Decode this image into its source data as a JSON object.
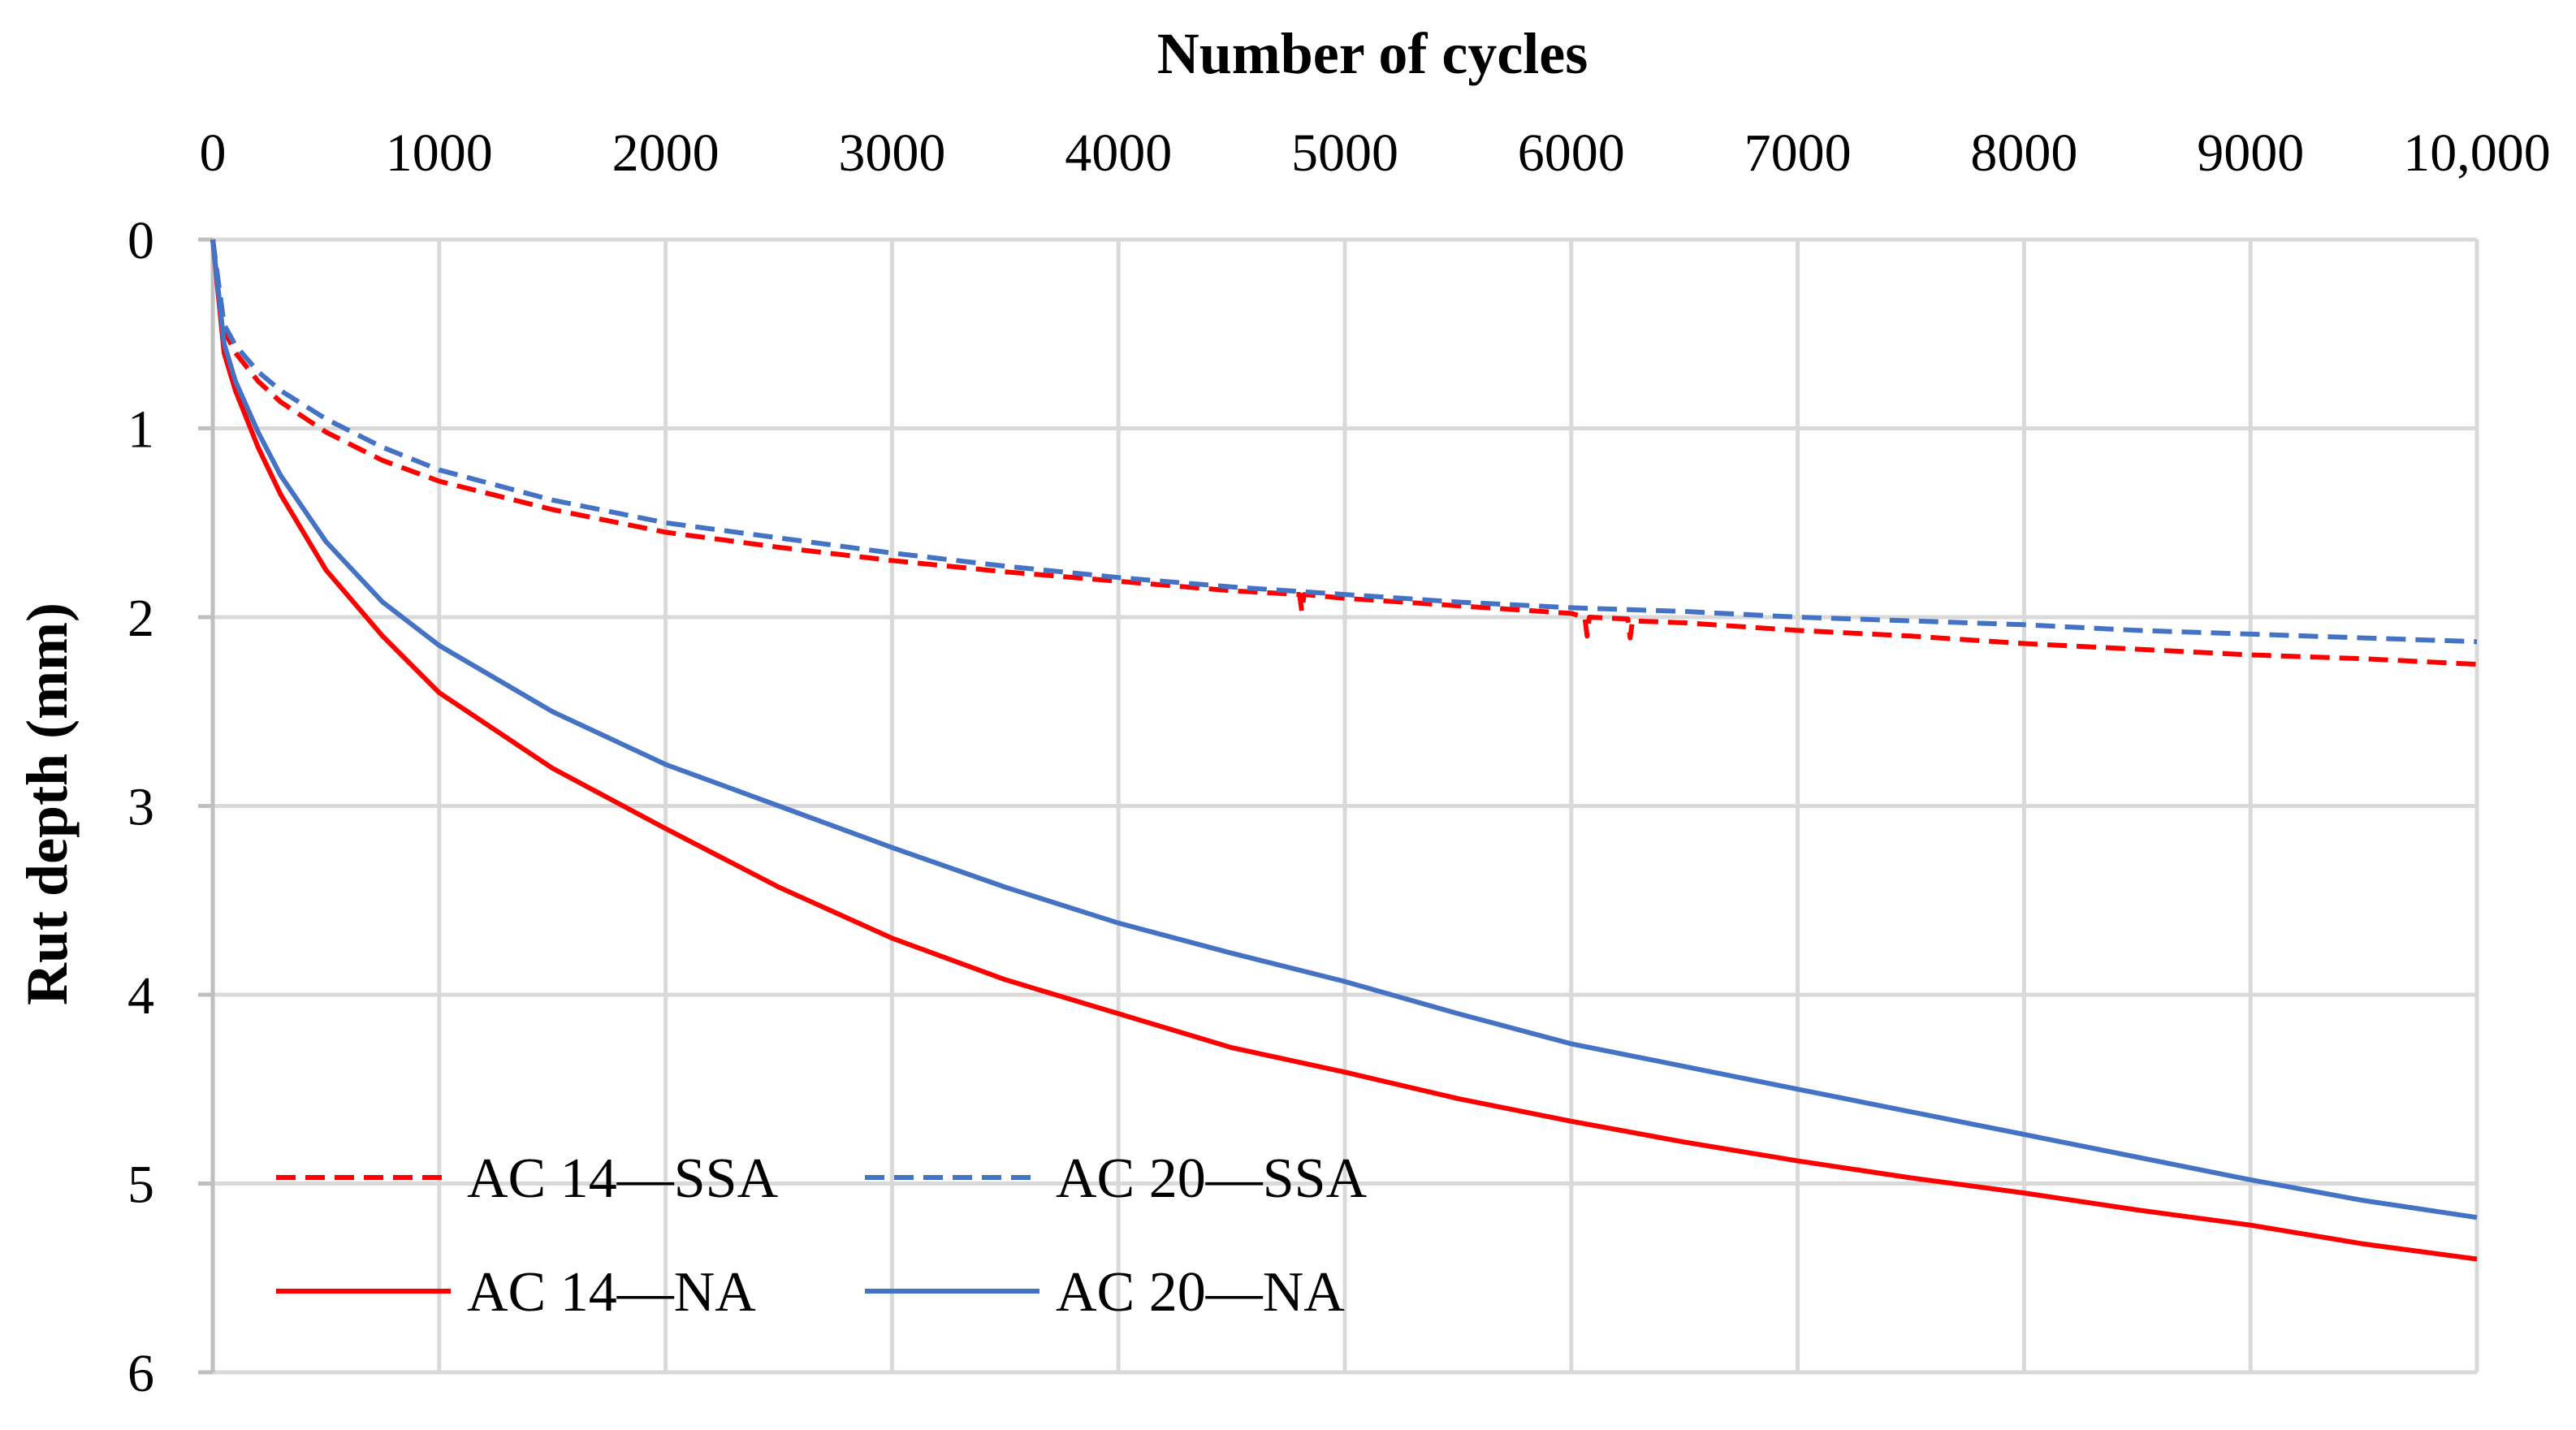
{
  "chart_data": {
    "type": "line",
    "title": "",
    "xlabel": "Number of cycles",
    "ylabel": "Rut depth (mm)",
    "xlim": [
      0,
      10000
    ],
    "ylim": [
      0,
      6
    ],
    "y_inverted": true,
    "x_axis_position": "top",
    "grid": true,
    "x_ticks": [
      {
        "value": 0,
        "label": "0"
      },
      {
        "value": 1000,
        "label": "1000"
      },
      {
        "value": 2000,
        "label": "2000"
      },
      {
        "value": 3000,
        "label": "3000"
      },
      {
        "value": 4000,
        "label": "4000"
      },
      {
        "value": 5000,
        "label": "5000"
      },
      {
        "value": 6000,
        "label": "6000"
      },
      {
        "value": 7000,
        "label": "7000"
      },
      {
        "value": 8000,
        "label": "8000"
      },
      {
        "value": 9000,
        "label": "9000"
      },
      {
        "value": 10000,
        "label": "10,000"
      }
    ],
    "y_ticks": [
      {
        "value": 0,
        "label": "0"
      },
      {
        "value": 1,
        "label": "1"
      },
      {
        "value": 2,
        "label": "2"
      },
      {
        "value": 3,
        "label": "3"
      },
      {
        "value": 4,
        "label": "4"
      },
      {
        "value": 5,
        "label": "5"
      },
      {
        "value": 6,
        "label": "6"
      }
    ],
    "legend_position": "bottom-left",
    "series": [
      {
        "name": "AC 14—SSA",
        "color": "#ff0000",
        "dash": true,
        "x": [
          0,
          50,
          100,
          200,
          300,
          500,
          750,
          1000,
          1500,
          2000,
          2500,
          3000,
          3500,
          4000,
          4500,
          4800,
          4810,
          4820,
          5000,
          5500,
          6000,
          6060,
          6070,
          6080,
          6250,
          6260,
          6270,
          6500,
          7000,
          7500,
          8000,
          8500,
          9000,
          9500,
          10000
        ],
        "values": [
          0,
          0.48,
          0.6,
          0.75,
          0.86,
          1.02,
          1.17,
          1.28,
          1.43,
          1.55,
          1.63,
          1.7,
          1.76,
          1.81,
          1.86,
          1.88,
          1.97,
          1.88,
          1.9,
          1.94,
          1.98,
          2.0,
          2.1,
          2.0,
          2.01,
          2.11,
          2.02,
          2.03,
          2.07,
          2.1,
          2.14,
          2.17,
          2.2,
          2.22,
          2.25
        ]
      },
      {
        "name": "AC 20—SSA",
        "color": "#4472c4",
        "dash": true,
        "x": [
          0,
          50,
          100,
          200,
          300,
          500,
          750,
          1000,
          1500,
          2000,
          2500,
          3000,
          3500,
          4000,
          4500,
          5000,
          5500,
          6000,
          6500,
          7000,
          7500,
          8000,
          8500,
          9000,
          9500,
          10000
        ],
        "values": [
          0,
          0.45,
          0.56,
          0.7,
          0.8,
          0.95,
          1.1,
          1.22,
          1.38,
          1.5,
          1.58,
          1.66,
          1.73,
          1.79,
          1.84,
          1.88,
          1.92,
          1.95,
          1.97,
          2.0,
          2.02,
          2.04,
          2.07,
          2.09,
          2.11,
          2.13
        ]
      },
      {
        "name": "AC 14—NA",
        "color": "#ff0000",
        "dash": false,
        "x": [
          0,
          50,
          100,
          200,
          300,
          500,
          750,
          1000,
          1500,
          2000,
          2500,
          3000,
          3500,
          4000,
          4500,
          5000,
          5500,
          6000,
          6500,
          7000,
          7500,
          8000,
          8500,
          9000,
          9500,
          10000
        ],
        "values": [
          0,
          0.6,
          0.8,
          1.1,
          1.35,
          1.75,
          2.1,
          2.4,
          2.8,
          3.12,
          3.43,
          3.7,
          3.92,
          4.1,
          4.28,
          4.41,
          4.55,
          4.67,
          4.78,
          4.88,
          4.97,
          5.05,
          5.14,
          5.22,
          5.32,
          5.4
        ]
      },
      {
        "name": "AC 20—NA",
        "color": "#4472c4",
        "dash": false,
        "x": [
          0,
          50,
          100,
          200,
          300,
          500,
          750,
          1000,
          1500,
          2000,
          2500,
          3000,
          3500,
          4000,
          4500,
          5000,
          5500,
          6000,
          6500,
          7000,
          7500,
          8000,
          8500,
          9000,
          9500,
          10000
        ],
        "values": [
          0,
          0.55,
          0.75,
          1.02,
          1.25,
          1.6,
          1.92,
          2.15,
          2.5,
          2.78,
          3.0,
          3.22,
          3.43,
          3.62,
          3.78,
          3.93,
          4.1,
          4.26,
          4.38,
          4.5,
          4.62,
          4.74,
          4.86,
          4.98,
          5.09,
          5.18
        ]
      }
    ]
  }
}
